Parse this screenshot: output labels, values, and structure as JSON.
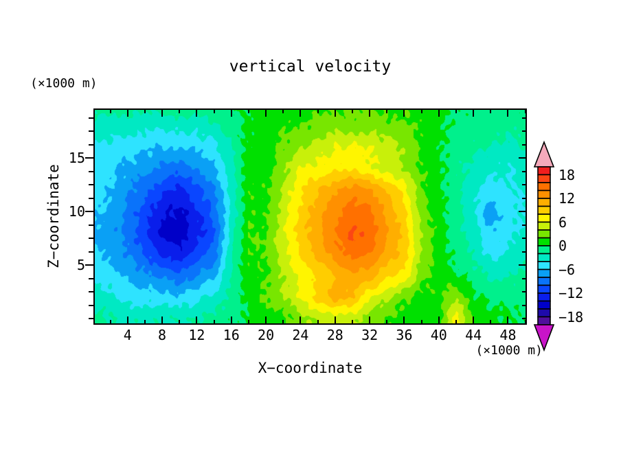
{
  "figure": {
    "title": "vertical velocity",
    "xlabel": "X−coordinate",
    "ylabel": "Z−coordinate",
    "x_unit_label": "(×1000 m)",
    "y_unit_label": "(×1000 m)"
  },
  "axes": {
    "x": {
      "major_ticks": [
        4,
        8,
        12,
        16,
        20,
        24,
        28,
        32,
        36,
        40,
        44,
        48
      ],
      "minor_ticks": [
        2,
        6,
        10,
        14,
        18,
        22,
        26,
        30,
        34,
        38,
        42,
        46,
        50
      ],
      "range": [
        0,
        50.2
      ]
    },
    "y": {
      "major_ticks": [
        5,
        10,
        15
      ],
      "minor_step": 1.25,
      "range": [
        -0.58,
        19.62
      ]
    }
  },
  "colorbar": {
    "labels": [
      "18",
      "12",
      "6",
      "0",
      "−6",
      "−12",
      "−18"
    ],
    "level_min": -20,
    "level_max": 20,
    "level_step": 2,
    "colors_top_to_bottom": [
      "#f01e1e",
      "#fb4614",
      "#ff7000",
      "#ff9000",
      "#ffae00",
      "#ffcd00",
      "#fff500",
      "#c8f00a",
      "#78e600",
      "#00e000",
      "#00f08c",
      "#00e9c3",
      "#2ee3ff",
      "#0aa0f5",
      "#0a73fa",
      "#0a46ff",
      "#0a1eeb",
      "#0000c8",
      "#1e0aaa",
      "#500f9b"
    ],
    "over_color": "#f5a9bb",
    "under_color": "#c814c8"
  },
  "chart_data": {
    "type": "heatmap",
    "subtype": "filled-contour",
    "title": "vertical velocity",
    "xlabel": "X−coordinate (×1000 m)",
    "ylabel": "Z−coordinate (×1000 m)",
    "contour_interval": 2,
    "value_range_shown": [
      -20,
      20
    ],
    "x": [
      0,
      2,
      4,
      6,
      8,
      10,
      12,
      14,
      16,
      18,
      20,
      22,
      24,
      26,
      28,
      30,
      32,
      34,
      36,
      38,
      40,
      42,
      44,
      46,
      48,
      50
    ],
    "y_top_to_bottom": [
      20,
      18,
      16,
      14,
      12,
      10,
      8,
      6,
      4,
      2,
      0
    ],
    "values_rows_top_to_bottom": [
      [
        -1,
        -1,
        -1,
        -1,
        -1,
        -0.5,
        -0.5,
        -0.5,
        0,
        0.5,
        0.5,
        1,
        1,
        1.5,
        1.5,
        2,
        2,
        1.5,
        1.5,
        1,
        0.5,
        0,
        -0.5,
        -0.5,
        -0.5,
        -0.5
      ],
      [
        -2.5,
        -3,
        -3,
        -3.5,
        -3.5,
        -3.5,
        -3,
        -2.5,
        -1,
        0.5,
        1,
        1.5,
        2,
        2.5,
        3,
        3,
        3,
        2.5,
        2.5,
        1.5,
        0.5,
        -0.5,
        -1,
        -1,
        -1.5,
        -1
      ],
      [
        -4.5,
        -4.5,
        -5,
        -5.5,
        -6,
        -6,
        -5.5,
        -4.5,
        -2,
        0.5,
        1,
        2.5,
        4,
        5,
        6,
        6.5,
        6,
        5,
        4,
        1.5,
        0.5,
        -1,
        -1.5,
        -2,
        -2.5,
        -2
      ],
      [
        -5,
        -5.5,
        -6.5,
        -7.5,
        -8.5,
        -9,
        -8,
        -6.5,
        -2.5,
        1,
        1,
        3.5,
        6,
        6.5,
        7.5,
        7.5,
        6.5,
        5,
        3.5,
        2,
        0.5,
        -1.5,
        -2.5,
        -3.5,
        -4,
        -3
      ],
      [
        -5.5,
        -6,
        -7.5,
        -9.5,
        -11.5,
        -12.5,
        -10.5,
        -8.5,
        -3,
        1.5,
        1.5,
        4.5,
        7.5,
        10,
        12,
        13,
        12.5,
        10,
        7,
        2.5,
        0.5,
        -1.5,
        -3,
        -5,
        -4.5,
        -3.5
      ],
      [
        -5.5,
        -6.5,
        -8.5,
        -11,
        -13.5,
        -14.5,
        -12.5,
        -9.5,
        -3.5,
        1.5,
        1.5,
        5,
        8.5,
        11,
        13.5,
        15,
        14.5,
        11.5,
        8.5,
        3,
        1,
        -1.5,
        -3.5,
        -7.5,
        -5,
        -4
      ],
      [
        -6.5,
        -7,
        -9,
        -11.5,
        -14.5,
        -15.5,
        -13,
        -10.5,
        -3,
        2,
        2,
        5.5,
        9,
        11.5,
        14,
        16.5,
        15.5,
        12,
        9.5,
        3.5,
        1,
        -1,
        -3,
        -6,
        -4.5,
        -3.5
      ],
      [
        -5,
        -6.5,
        -8,
        -10,
        -12.5,
        -13.5,
        -11,
        -9,
        -2.5,
        2,
        2,
        5,
        8.5,
        10.5,
        13,
        15,
        14,
        11,
        9.5,
        3.5,
        1,
        -0.5,
        -2.5,
        -4.5,
        -3.5,
        -3
      ],
      [
        -4.5,
        -5,
        -6.5,
        -7.5,
        -8.5,
        -9.5,
        -8,
        -6.5,
        -2,
        1.5,
        1.5,
        4,
        6.5,
        8,
        10,
        11.5,
        11,
        8.5,
        7.5,
        2.5,
        1,
        0.5,
        -1,
        -2.5,
        -2,
        -1.5
      ],
      [
        -3,
        -3.5,
        -4.5,
        -5,
        -5,
        -5.5,
        -4.5,
        -3.5,
        -1.5,
        0.5,
        2.5,
        4,
        6,
        9,
        11,
        10,
        6.5,
        4.5,
        2,
        1.5,
        1.5,
        4,
        0.5,
        -0.5,
        -0.5,
        -0.5
      ],
      [
        -1.5,
        -2,
        -2.5,
        -2.5,
        -2.5,
        -2,
        -2,
        -1.5,
        -0.5,
        0,
        1,
        1.5,
        3,
        4.5,
        5,
        4.5,
        3,
        2,
        1,
        1,
        1,
        7,
        1.5,
        0.5,
        0,
        0
      ]
    ]
  }
}
